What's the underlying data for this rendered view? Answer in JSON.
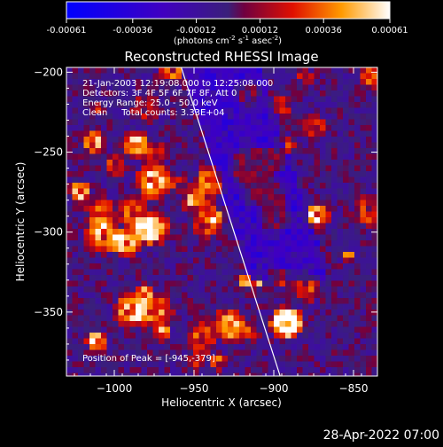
{
  "colorbar": {
    "tick_labels": [
      "-0.00061",
      "-0.00036",
      "-0.00012",
      "0.00012",
      "0.00036",
      "0.00061"
    ],
    "range": [
      -0.00061,
      0.00061
    ],
    "units_prefix": "(photons cm",
    "units_exp1": "-2",
    "units_mid": " s",
    "units_exp2": "-1",
    "units_mid2": " asec",
    "units_exp3": "-2",
    "units_suffix": ")"
  },
  "chart_data": {
    "type": "heatmap",
    "title": "Reconstructed RHESSI Image",
    "xlabel": "Heliocentric X (arcsec)",
    "ylabel": "Heliocentric Y (arcsec)",
    "xlim": [
      -1030,
      -835
    ],
    "ylim": [
      -390,
      -197
    ],
    "x_ticks": [
      -1000,
      -950,
      -900,
      -850
    ],
    "y_ticks": [
      -200,
      -250,
      -300,
      -350
    ],
    "x_tick_labels": [
      "−1000",
      "−950",
      "−900",
      "−850"
    ],
    "y_tick_labels": [
      "−200",
      "−250",
      "−300",
      "−350"
    ],
    "limb_line": [
      [
        -958,
        -197
      ],
      [
        -896,
        -390
      ]
    ],
    "peak": [
      -945,
      -379
    ],
    "colors": {
      "negative_low": "#0000ff",
      "neutral": "#3a1f7a",
      "positive_high": "#ffffff"
    }
  },
  "annotations": {
    "line1": "21-Jan-2003 12:19:08.000 to 12:25:08.000",
    "line2": "Detectors: 3F 4F 5F 6F 7F 8F, Att 0",
    "line3": "Energy Range: 25.0 - 50.0 keV",
    "line4": "Clean     Total counts: 3.33E+04",
    "peak_label": "Position of Peak = [-945,-379]"
  },
  "footer": {
    "timestamp": "28-Apr-2022 07:00"
  }
}
